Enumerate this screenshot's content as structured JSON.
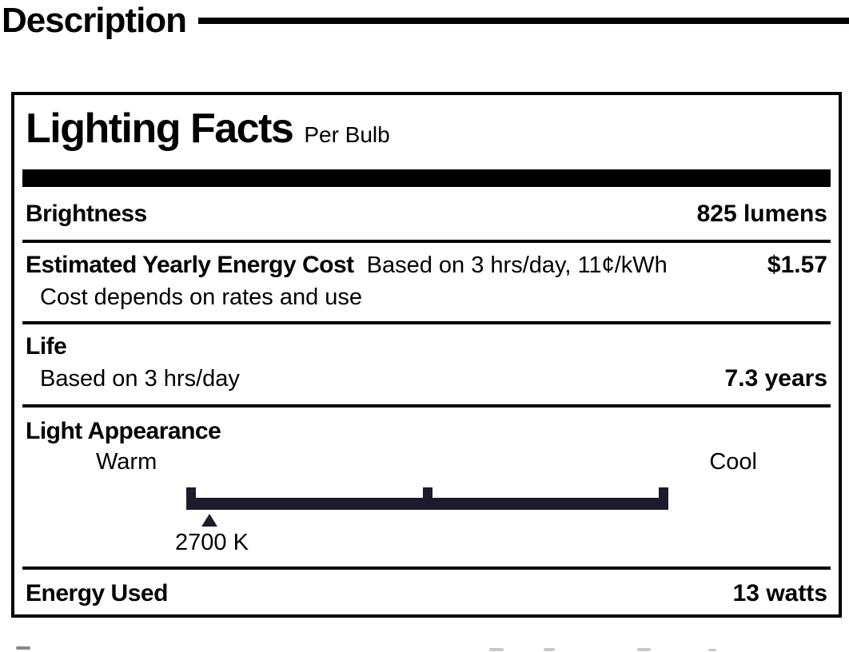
{
  "header": {
    "title": "Description"
  },
  "lighting_facts": {
    "title": "Lighting Facts",
    "subtitle": "Per Bulb",
    "brightness": {
      "label": "Brightness",
      "value": "825 lumens"
    },
    "energy_cost": {
      "label": "Estimated Yearly Energy Cost",
      "basis": "Based on 3 hrs/day, 11¢/kWh",
      "value": "$1.57",
      "note": "Cost depends on rates and use"
    },
    "life": {
      "label": "Life",
      "basis": "Based on 3 hrs/day",
      "value": "7.3 years"
    },
    "light_appearance": {
      "label": "Light Appearance",
      "scale_left_label": "Warm",
      "scale_right_label": "Cool",
      "marker_label": "2700 K",
      "bar_color": "#1b1b2e"
    },
    "energy_used": {
      "label": "Energy Used",
      "value": "13 watts"
    }
  }
}
